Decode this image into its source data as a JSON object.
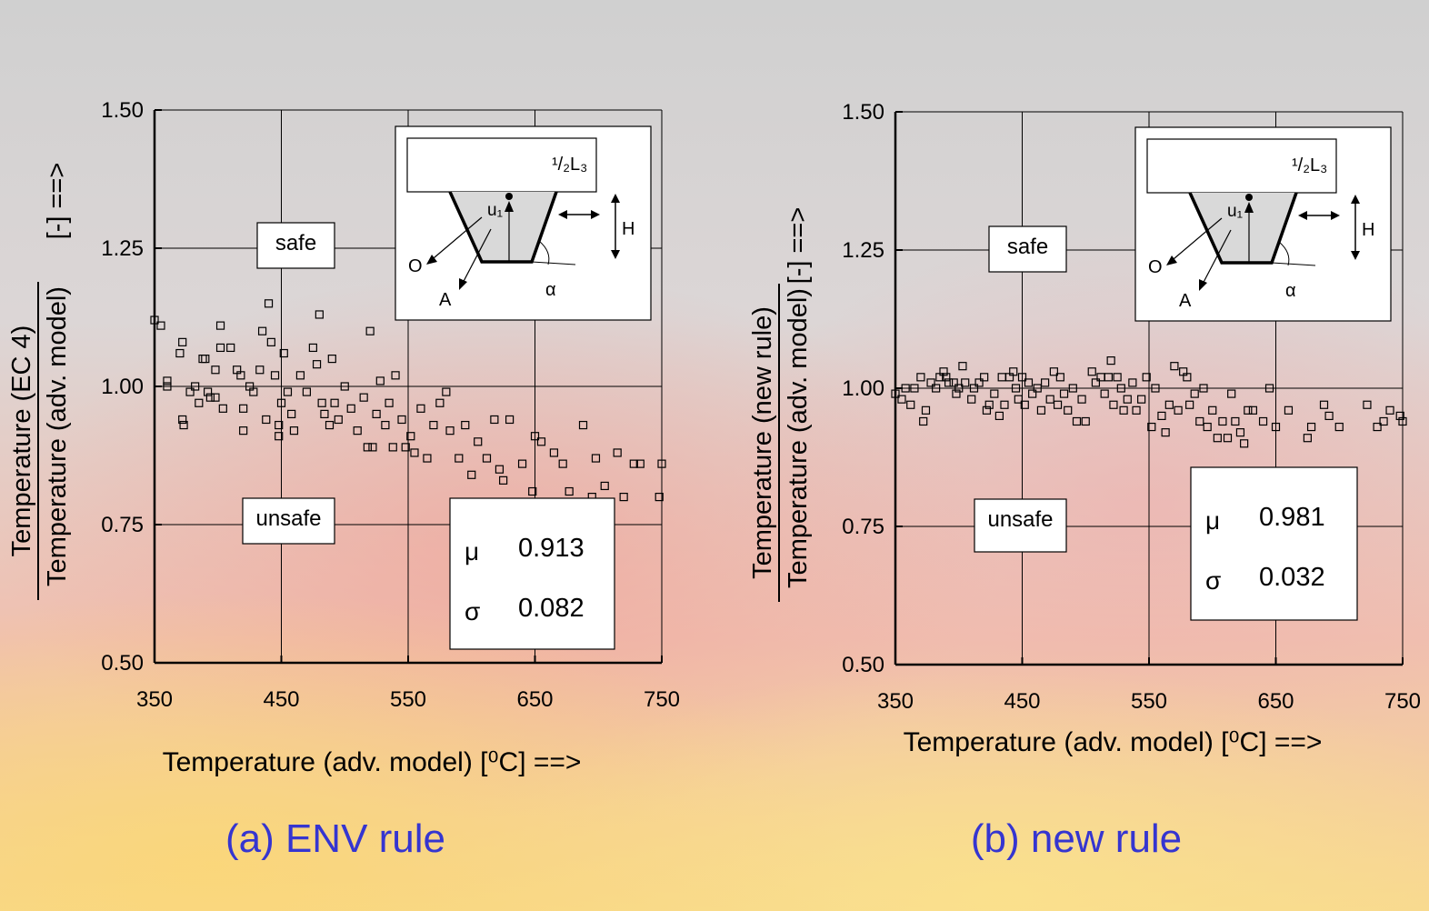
{
  "chart_data": [
    {
      "type": "scatter",
      "y_label_top": "Temperature (EC 4)",
      "y_label_bottom": "Temperature (adv. model)",
      "y_label_unit": "[-] ==>",
      "x_label": "Temperature (adv. model) [⁰C] ==>",
      "caption": "(a) ENV rule",
      "annotations": {
        "safe": "safe",
        "unsafe": "unsafe"
      },
      "stats": {
        "mu_symbol": "μ",
        "mu": 0.913,
        "sigma_symbol": "σ",
        "sigma": 0.082
      },
      "inset": {
        "half_length": "¹/₂L₃",
        "u": "u₁",
        "h": "H",
        "o": "O",
        "a": "A",
        "alpha": "α"
      },
      "marker_color": "#000000",
      "grid": true,
      "xlim": [
        350,
        750
      ],
      "ylim": [
        0.5,
        1.5
      ],
      "xticks": [
        350,
        450,
        550,
        650,
        750
      ],
      "yticks": [
        {
          "value": 0.5,
          "label": "0.50"
        },
        {
          "value": 0.75,
          "label": "0.75"
        },
        {
          "value": 1.0,
          "label": "1.00"
        },
        {
          "value": 1.25,
          "label": "1.25"
        },
        {
          "value": 1.5,
          "label": "1.50"
        }
      ],
      "x": [
        350,
        355,
        360,
        360,
        370,
        372,
        372,
        373,
        378,
        382,
        385,
        388,
        390,
        392,
        394,
        398,
        398,
        402,
        402,
        404,
        410,
        415,
        418,
        420,
        420,
        425,
        428,
        433,
        435,
        438,
        440,
        442,
        445,
        448,
        448,
        450,
        452,
        455,
        458,
        460,
        465,
        470,
        475,
        478,
        480,
        482,
        484,
        488,
        490,
        492,
        495,
        500,
        505,
        510,
        515,
        518,
        520,
        522,
        525,
        528,
        532,
        535,
        538,
        540,
        545,
        548,
        552,
        555,
        560,
        565,
        570,
        575,
        580,
        583,
        590,
        595,
        600,
        605,
        612,
        618,
        622,
        625,
        630,
        640,
        648,
        650,
        655,
        665,
        672,
        677,
        688,
        695,
        698,
        705,
        715,
        720,
        728,
        733,
        748,
        750
      ],
      "y": [
        1.12,
        1.11,
        1.01,
        1.0,
        1.06,
        1.08,
        0.94,
        0.93,
        0.99,
        1.0,
        0.97,
        1.05,
        1.05,
        0.99,
        0.98,
        1.03,
        0.98,
        1.11,
        1.07,
        0.96,
        1.07,
        1.03,
        1.02,
        0.96,
        0.92,
        1.0,
        0.99,
        1.03,
        1.1,
        0.94,
        1.15,
        1.08,
        1.02,
        0.93,
        0.91,
        0.97,
        1.06,
        0.99,
        0.95,
        0.92,
        1.02,
        0.99,
        1.07,
        1.04,
        1.13,
        0.97,
        0.95,
        0.93,
        1.05,
        0.97,
        0.94,
        1.0,
        0.96,
        0.92,
        0.98,
        0.89,
        1.1,
        0.89,
        0.95,
        1.01,
        0.93,
        0.97,
        0.89,
        1.02,
        0.94,
        0.89,
        0.91,
        0.88,
        0.96,
        0.87,
        0.93,
        0.97,
        0.99,
        0.92,
        0.87,
        0.93,
        0.84,
        0.9,
        0.87,
        0.94,
        0.85,
        0.83,
        0.94,
        0.86,
        0.81,
        0.91,
        0.9,
        0.88,
        0.86,
        0.81,
        0.93,
        0.8,
        0.87,
        0.82,
        0.88,
        0.8,
        0.86,
        0.86,
        0.8,
        0.86
      ]
    },
    {
      "type": "scatter",
      "y_label_top": "Temperature (new rule)",
      "y_label_bottom": "Temperature (adv. model)",
      "y_label_unit": "[-] ==>",
      "x_label": "Temperature (adv. model) [⁰C] ==>",
      "caption": "(b) new rule",
      "annotations": {
        "safe": "safe",
        "unsafe": "unsafe"
      },
      "stats": {
        "mu_symbol": "μ",
        "mu": 0.981,
        "sigma_symbol": "σ",
        "sigma": 0.032
      },
      "inset": {
        "half_length": "¹/₂L₃",
        "u": "u₁",
        "h": "H",
        "o": "O",
        "a": "A",
        "alpha": "α"
      },
      "marker_color": "#000000",
      "grid": true,
      "xlim": [
        350,
        750
      ],
      "ylim": [
        0.5,
        1.5
      ],
      "xticks": [
        350,
        450,
        550,
        650,
        750
      ],
      "yticks": [
        {
          "value": 0.5,
          "label": "0.50"
        },
        {
          "value": 0.75,
          "label": "0.75"
        },
        {
          "value": 1.0,
          "label": "1.00"
        },
        {
          "value": 1.25,
          "label": "1.25"
        },
        {
          "value": 1.5,
          "label": "1.50"
        }
      ],
      "x": [
        350,
        355,
        358,
        362,
        365,
        370,
        372,
        374,
        378,
        382,
        385,
        388,
        390,
        392,
        396,
        398,
        400,
        403,
        405,
        410,
        412,
        416,
        420,
        422,
        424,
        428,
        432,
        434,
        436,
        440,
        443,
        445,
        447,
        450,
        452,
        455,
        458,
        462,
        465,
        468,
        472,
        475,
        478,
        480,
        483,
        486,
        490,
        493,
        497,
        500,
        505,
        508,
        512,
        515,
        518,
        520,
        522,
        525,
        528,
        530,
        533,
        537,
        540,
        544,
        548,
        552,
        555,
        560,
        563,
        566,
        570,
        573,
        577,
        580,
        582,
        586,
        590,
        593,
        596,
        600,
        604,
        608,
        612,
        615,
        618,
        622,
        625,
        628,
        632,
        640,
        645,
        650,
        660,
        675,
        678,
        688,
        692,
        700,
        722,
        730,
        735,
        740,
        748,
        750
      ],
      "y": [
        0.99,
        0.98,
        1.0,
        0.97,
        1.0,
        1.02,
        0.94,
        0.96,
        1.01,
        1.0,
        1.02,
        1.03,
        1.02,
        1.01,
        1.01,
        0.99,
        1.0,
        1.04,
        1.01,
        0.98,
        1.0,
        1.01,
        1.02,
        0.96,
        0.97,
        0.99,
        0.95,
        1.02,
        0.97,
        1.02,
        1.03,
        1.0,
        0.98,
        1.02,
        0.97,
        1.01,
        0.99,
        1.0,
        0.96,
        1.01,
        0.98,
        1.03,
        0.97,
        1.02,
        0.99,
        0.96,
        1.0,
        0.94,
        0.98,
        0.94,
        1.03,
        1.01,
        1.02,
        0.99,
        1.02,
        1.05,
        0.97,
        1.02,
        1.0,
        0.96,
        0.98,
        1.01,
        0.96,
        0.98,
        1.02,
        0.93,
        1.0,
        0.95,
        0.92,
        0.97,
        1.04,
        0.96,
        1.03,
        1.02,
        0.97,
        0.99,
        0.94,
        1.0,
        0.93,
        0.96,
        0.91,
        0.94,
        0.91,
        0.99,
        0.94,
        0.92,
        0.9,
        0.96,
        0.96,
        0.94,
        1.0,
        0.93,
        0.96,
        0.91,
        0.93,
        0.97,
        0.95,
        0.93,
        0.97,
        0.93,
        0.94,
        0.96,
        0.95,
        0.94
      ]
    }
  ]
}
